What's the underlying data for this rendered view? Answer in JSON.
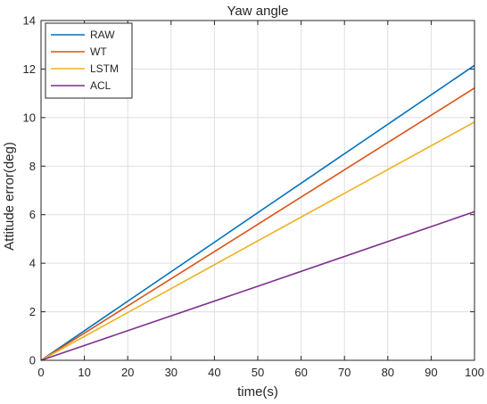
{
  "chart_data": {
    "type": "line",
    "title": "Yaw angle",
    "xlabel": "time(s)",
    "ylabel": "Attitude error(deg)",
    "xlim": [
      0,
      100
    ],
    "ylim": [
      0,
      14
    ],
    "xticks": [
      0,
      10,
      20,
      30,
      40,
      50,
      60,
      70,
      80,
      90,
      100
    ],
    "yticks": [
      0,
      2,
      4,
      6,
      8,
      10,
      12,
      14
    ],
    "grid": true,
    "legend_position": "top-left",
    "series": [
      {
        "name": "RAW",
        "color": "#0072BD",
        "x": [
          0,
          50,
          100
        ],
        "values": [
          0,
          6.08,
          12.15
        ]
      },
      {
        "name": "WT",
        "color": "#D95319",
        "x": [
          0,
          50,
          100
        ],
        "values": [
          0,
          5.6,
          11.22
        ]
      },
      {
        "name": "LSTM",
        "color": "#EDB120",
        "x": [
          0,
          50,
          100
        ],
        "values": [
          0,
          4.92,
          9.82
        ]
      },
      {
        "name": "ACL",
        "color": "#7E2F8E",
        "x": [
          0,
          50,
          100
        ],
        "values": [
          0,
          3.05,
          6.12
        ]
      }
    ]
  }
}
